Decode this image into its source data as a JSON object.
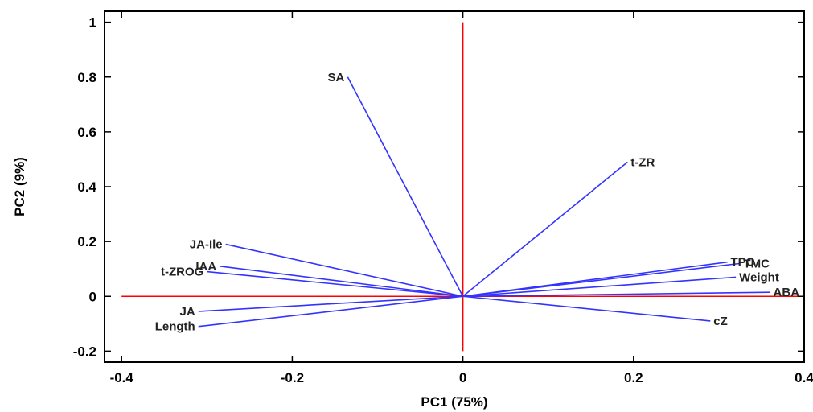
{
  "chart_data": {
    "type": "scatter",
    "subtype": "pca-biplot-loadings",
    "xlabel": "PC1 (75%)",
    "ylabel": "PC2 (9%)",
    "xlim": [
      -0.42,
      0.4
    ],
    "ylim": [
      -0.24,
      1.04
    ],
    "x_ticks": [
      {
        "value": -0.4,
        "label": "-0.4"
      },
      {
        "value": -0.2,
        "label": "-0.2"
      },
      {
        "value": 0,
        "label": "0"
      },
      {
        "value": 0.2,
        "label": "0.2"
      },
      {
        "value": 0.4,
        "label": "0.4"
      }
    ],
    "y_ticks": [
      {
        "value": -0.2,
        "label": "-0.2"
      },
      {
        "value": 0,
        "label": "0"
      },
      {
        "value": 0.2,
        "label": "0.2"
      },
      {
        "value": 0.4,
        "label": "0.4"
      },
      {
        "value": 0.6,
        "label": "0.6"
      },
      {
        "value": 0.8,
        "label": "0.8"
      },
      {
        "value": 1,
        "label": "1"
      }
    ],
    "grid": false,
    "legend": "none",
    "reference_lines": {
      "x0_range": [
        -0.2,
        1.0
      ],
      "y0_range": [
        -0.4,
        0.4
      ],
      "color": "#ff0000"
    },
    "vector_color": "#3333ff",
    "vectors": [
      {
        "label": "SA",
        "x": -0.135,
        "y": 0.8
      },
      {
        "label": "t-ZR",
        "x": 0.193,
        "y": 0.49
      },
      {
        "label": "JA-Ile",
        "x": -0.278,
        "y": 0.19
      },
      {
        "label": "IAA",
        "x": -0.285,
        "y": 0.11
      },
      {
        "label": "t-ZROG",
        "x": -0.3,
        "y": 0.09
      },
      {
        "label": "JA",
        "x": -0.31,
        "y": -0.055
      },
      {
        "label": "Length",
        "x": -0.31,
        "y": -0.11
      },
      {
        "label": "TPC",
        "x": 0.31,
        "y": 0.125
      },
      {
        "label": "TMC",
        "x": 0.325,
        "y": 0.12
      },
      {
        "label": "Weight",
        "x": 0.32,
        "y": 0.07
      },
      {
        "label": "ABA",
        "x": 0.36,
        "y": 0.015
      },
      {
        "label": "cZ",
        "x": 0.29,
        "y": -0.09
      }
    ]
  }
}
